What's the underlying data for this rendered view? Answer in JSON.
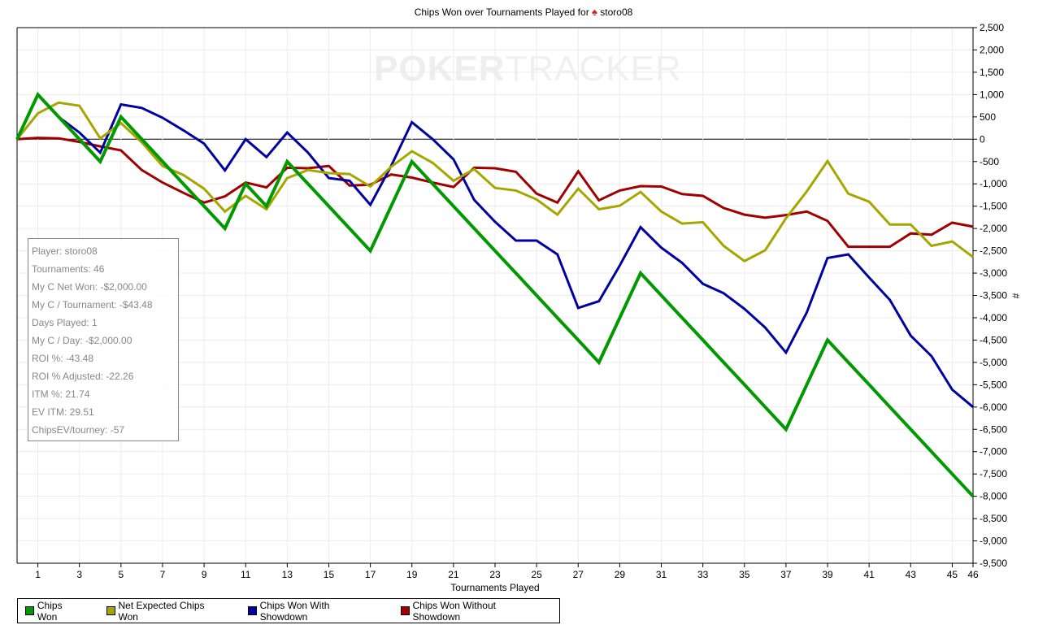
{
  "title": {
    "prefix": "Chips Won over Tournaments Played for",
    "icon": "spade-icon",
    "player": "storo08"
  },
  "watermark": {
    "part1": "POKER",
    "part2": "TRACKER"
  },
  "info_box": [
    "Player: storo08",
    "Tournaments: 46",
    "My C Net Won: -$2,000.00",
    "My C / Tournament: -$43.48",
    "Days Played: 1",
    "My C / Day: -$2,000.00",
    "ROI %: -43.48",
    "ROI % Adjusted: -22.26",
    "ITM %: 21.74",
    "EV ITM: 29.51",
    "ChipsEV/tourney: -57"
  ],
  "chart_data": {
    "type": "line",
    "title": "Chips Won over Tournaments Played for storo08",
    "xlabel": "Tournaments Played",
    "ylabel": "#",
    "xlim": [
      0,
      46
    ],
    "ylim": [
      -9500,
      2500
    ],
    "x_ticks": [
      1,
      3,
      5,
      7,
      9,
      11,
      13,
      15,
      17,
      19,
      21,
      23,
      25,
      27,
      29,
      31,
      33,
      35,
      37,
      39,
      41,
      43,
      45,
      46
    ],
    "y_ticks": [
      2500,
      2000,
      1500,
      1000,
      500,
      0,
      -500,
      -1000,
      -1500,
      -2000,
      -2500,
      -3000,
      -3500,
      -4000,
      -4500,
      -5000,
      -5500,
      -6000,
      -6500,
      -7000,
      -7500,
      -8000,
      -8500,
      -9000,
      -9500
    ],
    "y_tick_labels": [
      "2,500",
      "2,000",
      "1,500",
      "1,000",
      "500",
      "0",
      "-500",
      "-1,000",
      "-1,500",
      "-2,000",
      "-2,500",
      "-3,000",
      "-3,500",
      "-4,000",
      "-4,500",
      "-5,000",
      "-5,500",
      "-6,000",
      "-6,500",
      "-7,000",
      "-7,500",
      "-8,000",
      "-8,500",
      "-9,000",
      "-9,500"
    ],
    "grid": true,
    "legend_position": "bottom",
    "series": [
      {
        "name": "Chips Won",
        "color": "#009900",
        "values": [
          0,
          1000,
          500,
          0,
          -500,
          500,
          0,
          -500,
          -1000,
          -1500,
          -2000,
          -1000,
          -1500,
          -500,
          -1000,
          -1500,
          -2000,
          -2500,
          -1500,
          -500,
          -1000,
          -1500,
          -2000,
          -2500,
          -3000,
          -3500,
          -4000,
          -4500,
          -5000,
          -4000,
          -3000,
          -3500,
          -4000,
          -4500,
          -5000,
          -5500,
          -6000,
          -6500,
          -5500,
          -4500,
          -5000,
          -5500,
          -6000,
          -6500,
          -7000,
          -7500,
          -8000
        ]
      },
      {
        "name": "Net Expected Chips Won",
        "color": "#a6a600",
        "values": [
          0,
          580,
          820,
          750,
          20,
          360,
          -70,
          -600,
          -800,
          -1110,
          -1620,
          -1270,
          -1570,
          -870,
          -690,
          -760,
          -780,
          -1060,
          -620,
          -270,
          -530,
          -930,
          -670,
          -1090,
          -1150,
          -1350,
          -1690,
          -1110,
          -1570,
          -1490,
          -1180,
          -1620,
          -1890,
          -1860,
          -2390,
          -2730,
          -2490,
          -1770,
          -1170,
          -490,
          -1220,
          -1400,
          -1910,
          -1910,
          -2390,
          -2290,
          -2640
        ]
      },
      {
        "name": "Chips Won With Showdown",
        "color": "#0000a0",
        "values": [
          0,
          1000,
          500,
          150,
          -300,
          780,
          700,
          480,
          200,
          -100,
          -700,
          0,
          -400,
          150,
          -300,
          -870,
          -930,
          -1470,
          -600,
          380,
          0,
          -450,
          -1360,
          -1850,
          -2270,
          -2270,
          -2580,
          -3780,
          -3630,
          -2830,
          -1970,
          -2430,
          -2770,
          -3240,
          -3450,
          -3800,
          -4220,
          -4780,
          -3880,
          -2660,
          -2580,
          -3100,
          -3600,
          -4400,
          -4860,
          -5610,
          -6000
        ]
      },
      {
        "name": "Chips Won Without Showdown",
        "color": "#a00000",
        "values": [
          0,
          30,
          20,
          -60,
          -160,
          -250,
          -690,
          -970,
          -1200,
          -1420,
          -1280,
          -970,
          -1080,
          -640,
          -650,
          -600,
          -1040,
          -1020,
          -790,
          -860,
          -970,
          -1070,
          -640,
          -650,
          -730,
          -1220,
          -1420,
          -720,
          -1370,
          -1150,
          -1050,
          -1060,
          -1230,
          -1270,
          -1540,
          -1690,
          -1760,
          -1700,
          -1620,
          -1830,
          -2410,
          -2410,
          -2410,
          -2110,
          -2140,
          -1870,
          -1960
        ]
      }
    ]
  }
}
